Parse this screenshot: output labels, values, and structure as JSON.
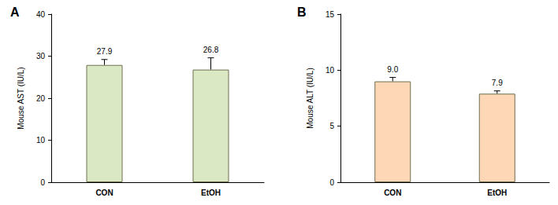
{
  "chart_data": [
    {
      "type": "bar",
      "title": "A",
      "y_label": "Mouse AST (IU/L)",
      "categories": [
        "CON",
        "EtOH"
      ],
      "values": [
        27.9,
        26.8
      ],
      "errors": [
        1.3,
        2.8
      ],
      "color": "#dbe8c4",
      "ylim": [
        0,
        40
      ],
      "yticks": [
        0,
        10,
        20,
        30,
        40
      ],
      "grid": false,
      "data_labels": true
    },
    {
      "type": "bar",
      "title": "B",
      "y_label": "Mouse ALT (IU/L)",
      "categories": [
        "CON",
        "EtOH"
      ],
      "values": [
        9.0,
        7.9
      ],
      "errors": [
        0.35,
        0.25
      ],
      "value_labels": [
        "9.0",
        "7.9"
      ],
      "color": "#fdd7b6",
      "ylim": [
        0,
        15
      ],
      "yticks": [
        0,
        5,
        10,
        15
      ],
      "grid": false,
      "data_labels": true
    }
  ]
}
